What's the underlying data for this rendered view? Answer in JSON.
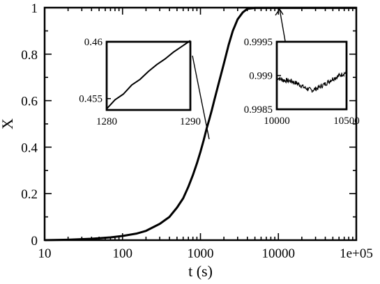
{
  "chart_data": [
    {
      "id": "main",
      "type": "line",
      "title": "",
      "xlabel": "t (s)",
      "ylabel": "X",
      "xscale": "log",
      "xlim": [
        10,
        100000
      ],
      "ylim": [
        0,
        1
      ],
      "grid": false,
      "xticks": [
        {
          "value": 10,
          "label": "10"
        },
        {
          "value": 100,
          "label": "100"
        },
        {
          "value": 1000,
          "label": "1000"
        },
        {
          "value": 10000,
          "label": "10000"
        },
        {
          "value": 100000,
          "label": "1e+05"
        }
      ],
      "yticks": [
        {
          "value": 0,
          "label": "0"
        },
        {
          "value": 0.2,
          "label": "0.2"
        },
        {
          "value": 0.4,
          "label": "0.4"
        },
        {
          "value": 0.6,
          "label": "0.6"
        },
        {
          "value": 0.8,
          "label": "0.8"
        },
        {
          "value": 1,
          "label": "1"
        }
      ],
      "series": [
        {
          "x": [
            10,
            20,
            40,
            70,
            100,
            150,
            200,
            300,
            400,
            500,
            600,
            700,
            800,
            900,
            1000,
            1100,
            1200,
            1300,
            1400,
            1500,
            1700,
            2000,
            2300,
            2600,
            3000,
            3500,
            4000,
            5000,
            7000,
            10000,
            20000,
            50000,
            100000
          ],
          "y": [
            0.0,
            0.002,
            0.006,
            0.012,
            0.018,
            0.028,
            0.04,
            0.07,
            0.1,
            0.14,
            0.18,
            0.23,
            0.28,
            0.33,
            0.38,
            0.43,
            0.48,
            0.52,
            0.56,
            0.6,
            0.67,
            0.76,
            0.84,
            0.9,
            0.95,
            0.98,
            0.995,
            0.999,
            0.999,
            0.999,
            0.999,
            0.999,
            0.999
          ]
        }
      ]
    },
    {
      "id": "inset-left",
      "type": "line",
      "xlim": [
        1280,
        1290
      ],
      "ylim": [
        0.454,
        0.46
      ],
      "xticks": [
        {
          "value": 1280,
          "label": "1280"
        },
        {
          "value": 1290,
          "label": "1290"
        }
      ],
      "yticks": [
        {
          "value": 0.455,
          "label": "0.455"
        },
        {
          "value": 0.46,
          "label": "0.46"
        }
      ],
      "series": [
        {
          "x": [
            1280,
            1281,
            1282,
            1283,
            1284,
            1285,
            1286,
            1287,
            1288,
            1289,
            1290
          ],
          "y": [
            0.4541,
            0.4549,
            0.4554,
            0.4562,
            0.4567,
            0.4574,
            0.458,
            0.4585,
            0.4591,
            0.4596,
            0.4601
          ]
        }
      ]
    },
    {
      "id": "inset-right",
      "type": "line",
      "xlim": [
        10000,
        10500
      ],
      "ylim": [
        0.9985,
        0.9995
      ],
      "xticks": [
        {
          "value": 10000,
          "label": "10000"
        },
        {
          "value": 10500,
          "label": "10500"
        }
      ],
      "yticks": [
        {
          "value": 0.9985,
          "label": "0.9985"
        },
        {
          "value": 0.999,
          "label": "0.999"
        },
        {
          "value": 0.9995,
          "label": "0.9995"
        }
      ],
      "series": [
        {
          "x": [
            10000,
            10050,
            10100,
            10150,
            10200,
            10250,
            10300,
            10350,
            10400,
            10450,
            10500
          ],
          "y": [
            0.99897,
            0.99893,
            0.99892,
            0.99888,
            0.99882,
            0.99878,
            0.99882,
            0.99888,
            0.99895,
            0.999,
            0.99905
          ]
        }
      ]
    }
  ]
}
